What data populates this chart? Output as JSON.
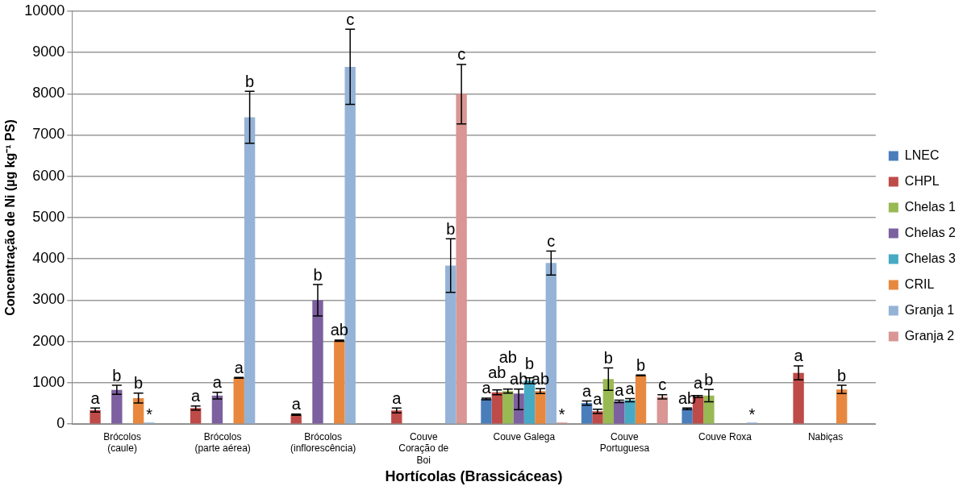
{
  "chart_data": {
    "type": "bar",
    "xlabel": "Hortícolas (Brassicáceas)",
    "ylabel": "Concentração de Ni (µg kg⁻¹ PS)",
    "categories": [
      "Brócolos (caule)",
      "Brócolos (parte aérea)",
      "Brócolos (inflorescência)",
      "Couve Coração de Boi",
      "Couve Galega",
      "Couve Portuguesa",
      "Couve Roxa",
      "Nabiças"
    ],
    "series": [
      {
        "name": "LNEC",
        "color": "#4a7ebb",
        "values": [
          null,
          null,
          null,
          null,
          610,
          510,
          370,
          null
        ],
        "errors": [
          null,
          null,
          null,
          null,
          20,
          50,
          20,
          null
        ],
        "value_labels": [
          null,
          null,
          null,
          null,
          "a",
          "a",
          "ab",
          null
        ]
      },
      {
        "name": "CHPL",
        "color": "#be4b48",
        "values": [
          340,
          390,
          230,
          330,
          770,
          310,
          670,
          1240
        ],
        "errors": [
          50,
          50,
          15,
          60,
          60,
          50,
          20,
          170
        ],
        "value_labels": [
          "a",
          "a",
          "a",
          "a",
          "ab",
          "a",
          "a",
          "a"
        ]
      },
      {
        "name": "Chelas 1",
        "color": "#98b954",
        "values": [
          null,
          null,
          null,
          null,
          800,
          1090,
          690,
          null
        ],
        "errors": [
          null,
          null,
          null,
          null,
          50,
          270,
          150,
          null
        ],
        "value_labels": [
          null,
          null,
          null,
          null,
          "ab",
          "b",
          "b",
          null
        ]
      },
      {
        "name": "Chelas 2",
        "color": "#7d60a0",
        "values": [
          830,
          690,
          3000,
          null,
          740,
          550,
          null,
          null
        ],
        "errors": [
          110,
          80,
          380,
          null,
          [
            350,
            850
          ],
          30,
          null,
          null
        ],
        "value_labels": [
          "b",
          "a",
          "b",
          null,
          "ab",
          "a",
          null,
          null
        ]
      },
      {
        "name": "Chelas 3",
        "color": "#46aac5",
        "values": [
          null,
          null,
          null,
          null,
          1050,
          580,
          null,
          null
        ],
        "errors": [
          null,
          null,
          null,
          null,
          70,
          40,
          null,
          null
        ],
        "value_labels": [
          null,
          null,
          null,
          null,
          "b",
          "a",
          null,
          null
        ]
      },
      {
        "name": "CRIL",
        "color": "#e8883e",
        "values": [
          630,
          1120,
          2020,
          null,
          800,
          1180,
          null,
          840
        ],
        "errors": [
          120,
          10,
          15,
          null,
          60,
          10,
          null,
          100
        ],
        "value_labels": [
          "b",
          "a",
          "ab",
          null,
          "ab",
          "b",
          null,
          "b"
        ]
      },
      {
        "name": "Granja 1",
        "color": "#95b3d7",
        "values": [
          0,
          7430,
          8650,
          3840,
          3900,
          null,
          0,
          null
        ],
        "errors": [
          null,
          630,
          910,
          650,
          290,
          null,
          null,
          null
        ],
        "value_labels": [
          "*",
          "b",
          "c",
          "b",
          "c",
          null,
          "*",
          null
        ]
      },
      {
        "name": "Granja 2",
        "color": "#d99694",
        "values": [
          null,
          null,
          null,
          7990,
          0,
          660,
          null,
          null
        ],
        "errors": [
          null,
          null,
          null,
          720,
          null,
          50,
          null,
          null
        ],
        "value_labels": [
          null,
          null,
          null,
          "c",
          "*",
          "c",
          null,
          null
        ]
      }
    ],
    "ylim": [
      0,
      10000
    ],
    "yticks": [
      0,
      1000,
      2000,
      3000,
      4000,
      5000,
      6000,
      7000,
      8000,
      9000,
      10000
    ],
    "grid": "y",
    "legend": "right"
  }
}
